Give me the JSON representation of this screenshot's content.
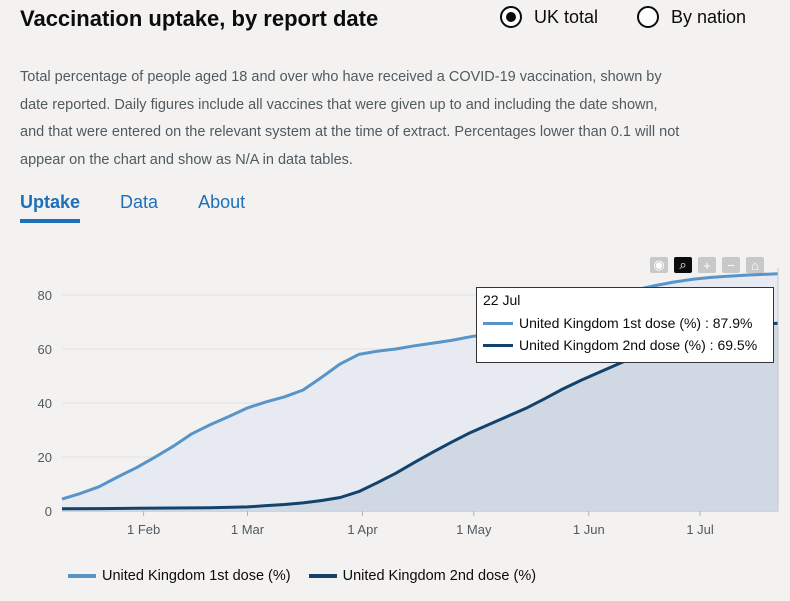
{
  "header": {
    "title": "Vaccination uptake, by report date",
    "radio_options": [
      {
        "label": "UK total",
        "selected": true
      },
      {
        "label": "By nation",
        "selected": false
      }
    ]
  },
  "description": "Total percentage of people aged 18 and over who have received a COVID-19 vaccination, shown by date reported. Daily figures include all vaccines that were given up to and including the date shown, and that were entered on the relevant system at the time of extract. Percentages lower than 0.1 will not appear on the chart and show as N/A in data tables.",
  "tabs": [
    {
      "label": "Uptake",
      "active": true
    },
    {
      "label": "Data",
      "active": false
    },
    {
      "label": "About",
      "active": false
    }
  ],
  "toolbar_icons": [
    "camera-icon",
    "zoom-icon",
    "zoom-in-icon",
    "zoom-out-icon",
    "home-icon"
  ],
  "tooltip": {
    "date": "22 Jul",
    "rows": [
      {
        "label": "United Kingdom 1st dose (%) : 87.9%"
      },
      {
        "label": "United Kingdom 2nd dose (%) : 69.5%"
      }
    ]
  },
  "colors": {
    "first": "#5694ca",
    "second": "#12436d",
    "fill1": "#e4e9f1",
    "fill2": "#cdd6e2",
    "link": "#1d70b8"
  },
  "chart_data": {
    "type": "area",
    "x_start": "2021-01-10",
    "x_end": "2021-07-22",
    "x_ticks": [
      {
        "date": "2021-02-01",
        "label": "1 Feb"
      },
      {
        "date": "2021-03-01",
        "label": "1 Mar"
      },
      {
        "date": "2021-04-01",
        "label": "1 Apr"
      },
      {
        "date": "2021-05-01",
        "label": "1 May"
      },
      {
        "date": "2021-06-01",
        "label": "1 Jun"
      },
      {
        "date": "2021-07-01",
        "label": "1 Jul"
      }
    ],
    "y_ticks": [
      0,
      20,
      40,
      60,
      80
    ],
    "ylim": [
      0,
      90
    ],
    "series": [
      {
        "name": "United Kingdom 1st dose (%)",
        "points": [
          [
            "2021-01-10",
            4.4
          ],
          [
            "2021-01-15",
            6.5
          ],
          [
            "2021-01-20",
            9.0
          ],
          [
            "2021-01-25",
            12.6
          ],
          [
            "2021-01-30",
            16.0
          ],
          [
            "2021-02-04",
            19.9
          ],
          [
            "2021-02-09",
            24.0
          ],
          [
            "2021-02-14",
            28.6
          ],
          [
            "2021-02-19",
            32.0
          ],
          [
            "2021-02-24",
            35.0
          ],
          [
            "2021-03-01",
            38.2
          ],
          [
            "2021-03-06",
            40.4
          ],
          [
            "2021-03-11",
            42.3
          ],
          [
            "2021-03-16",
            44.8
          ],
          [
            "2021-03-21",
            49.5
          ],
          [
            "2021-03-26",
            54.5
          ],
          [
            "2021-03-31",
            58.0
          ],
          [
            "2021-04-05",
            59.2
          ],
          [
            "2021-04-10",
            60.0
          ],
          [
            "2021-04-15",
            61.2
          ],
          [
            "2021-04-20",
            62.2
          ],
          [
            "2021-04-25",
            63.2
          ],
          [
            "2021-04-30",
            64.5
          ],
          [
            "2021-05-05",
            65.6
          ],
          [
            "2021-05-10",
            67.0
          ],
          [
            "2021-05-15",
            69.0
          ],
          [
            "2021-05-20",
            71.5
          ],
          [
            "2021-05-25",
            74.5
          ],
          [
            "2021-05-30",
            76.5
          ],
          [
            "2021-06-04",
            78.5
          ],
          [
            "2021-06-09",
            80.2
          ],
          [
            "2021-06-14",
            82.0
          ],
          [
            "2021-06-19",
            83.5
          ],
          [
            "2021-06-24",
            84.8
          ],
          [
            "2021-06-29",
            85.8
          ],
          [
            "2021-07-04",
            86.5
          ],
          [
            "2021-07-09",
            87.0
          ],
          [
            "2021-07-14",
            87.4
          ],
          [
            "2021-07-19",
            87.7
          ],
          [
            "2021-07-22",
            87.9
          ]
        ]
      },
      {
        "name": "United Kingdom 2nd dose (%)",
        "points": [
          [
            "2021-01-10",
            0.8
          ],
          [
            "2021-01-20",
            0.9
          ],
          [
            "2021-01-30",
            1.0
          ],
          [
            "2021-02-09",
            1.1
          ],
          [
            "2021-02-19",
            1.2
          ],
          [
            "2021-03-01",
            1.5
          ],
          [
            "2021-03-06",
            2.0
          ],
          [
            "2021-03-11",
            2.4
          ],
          [
            "2021-03-16",
            3.0
          ],
          [
            "2021-03-21",
            3.9
          ],
          [
            "2021-03-26",
            5.0
          ],
          [
            "2021-03-31",
            7.2
          ],
          [
            "2021-04-05",
            10.5
          ],
          [
            "2021-04-10",
            14.0
          ],
          [
            "2021-04-15",
            18.0
          ],
          [
            "2021-04-20",
            21.8
          ],
          [
            "2021-04-25",
            25.5
          ],
          [
            "2021-04-30",
            29.0
          ],
          [
            "2021-05-05",
            32.0
          ],
          [
            "2021-05-10",
            35.0
          ],
          [
            "2021-05-15",
            38.0
          ],
          [
            "2021-05-20",
            41.5
          ],
          [
            "2021-05-25",
            45.2
          ],
          [
            "2021-05-30",
            48.5
          ],
          [
            "2021-06-04",
            51.5
          ],
          [
            "2021-06-09",
            54.5
          ],
          [
            "2021-06-14",
            57.5
          ],
          [
            "2021-06-19",
            60.5
          ],
          [
            "2021-06-24",
            63.0
          ],
          [
            "2021-06-29",
            65.2
          ],
          [
            "2021-07-04",
            66.8
          ],
          [
            "2021-07-09",
            68.0
          ],
          [
            "2021-07-14",
            68.8
          ],
          [
            "2021-07-19",
            69.3
          ],
          [
            "2021-07-22",
            69.5
          ]
        ]
      }
    ]
  }
}
